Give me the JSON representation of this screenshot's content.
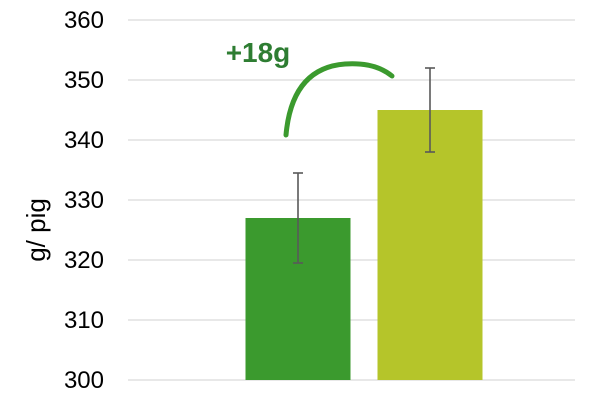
{
  "chart_data": {
    "type": "bar",
    "categories": [
      "",
      ""
    ],
    "values": [
      327,
      345
    ],
    "error_bars": [
      {
        "low": 319.5,
        "high": 334.5
      },
      {
        "low": 338,
        "high": 352
      }
    ],
    "bar_colors": [
      "#3b9a2e",
      "#b5c52a"
    ],
    "title": "",
    "xlabel": "",
    "ylabel": "g/ pig",
    "ylim": [
      300,
      360
    ],
    "yticks": [
      300,
      310,
      320,
      330,
      340,
      350,
      360
    ],
    "grid": true,
    "annotation": {
      "text": "+18g",
      "color": "#2e7d32",
      "arc_color": "#3b9a2e"
    }
  }
}
